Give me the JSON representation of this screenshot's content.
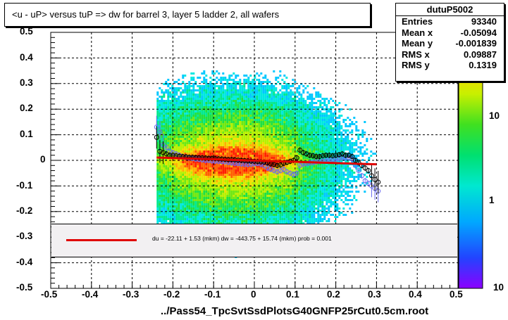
{
  "chart_data": {
    "type": "scatter",
    "title": "<u - uP>       versus  tuP =>  dw for barrel 3, layer 5 ladder 2, all wafers",
    "xlabel": "../Pass54_TpcSvtSsdPlotsG40GNFP25rCut0.5cm.root",
    "ylabel": "",
    "xlim": [
      -0.5,
      0.5
    ],
    "ylim": [
      -0.5,
      0.5
    ],
    "x_ticks": [
      "-0.5",
      "-0.4",
      "-0.3",
      "-0.2",
      "-0.1",
      "0",
      "0.1",
      "0.2",
      "0.3",
      "0.4",
      "0.5"
    ],
    "y_ticks": [
      "0.5",
      "0.4",
      "0.3",
      "0.2",
      "0.1",
      "0",
      "-0.1",
      "-0.2",
      "-0.3",
      "-0.4",
      "-0.5"
    ],
    "z_ticks": [
      "10",
      "1",
      "10"
    ],
    "grid": true,
    "stats": {
      "name": "dutuP5002",
      "rows": [
        {
          "label": "Entries",
          "value": "93340"
        },
        {
          "label": "Mean x",
          "value": "-0.05094"
        },
        {
          "label": "Mean y",
          "value": "-0.001839"
        },
        {
          "label": "RMS x",
          "value": "0.09887"
        },
        {
          "label": "RMS y",
          "value": "0.1319"
        }
      ]
    },
    "fit_text": "du =  -22.11 +   1.53 (mkm) dw = -443.75 +  15.74 (mkm) prob = 0.001",
    "fit_line": {
      "x": [
        -0.24,
        0.3
      ],
      "y": [
        0.011,
        -0.0155
      ],
      "color": "#e00000"
    },
    "profile_black": {
      "x": [
        -0.24,
        -0.232,
        -0.224,
        -0.216,
        -0.208,
        -0.2,
        -0.192,
        -0.184,
        -0.176,
        -0.168,
        -0.16,
        -0.152,
        -0.144,
        -0.136,
        -0.128,
        -0.12,
        -0.112,
        -0.104,
        -0.096,
        -0.088,
        -0.08,
        -0.072,
        -0.064,
        -0.056,
        -0.048,
        -0.04,
        -0.032,
        -0.024,
        -0.016,
        -0.008,
        0.0,
        0.008,
        0.016,
        0.024,
        0.032,
        0.04,
        0.048,
        0.056,
        0.064,
        0.072,
        0.08,
        0.088,
        0.096,
        0.104,
        0.112,
        0.12,
        0.128,
        0.136,
        0.144,
        0.152,
        0.16,
        0.168,
        0.176,
        0.184,
        0.192,
        0.2,
        0.208,
        0.216,
        0.224,
        0.232,
        0.24,
        0.248,
        0.256,
        0.264,
        0.272,
        0.28,
        0.288,
        0.296,
        0.304
      ],
      "y": [
        0.09,
        0.035,
        0.03,
        0.025,
        0.02,
        0.02,
        0.018,
        0.016,
        0.015,
        0.014,
        0.012,
        0.012,
        0.011,
        0.01,
        0.01,
        0.009,
        0.008,
        0.008,
        0.007,
        0.006,
        0.005,
        0.004,
        0.003,
        0.003,
        0.002,
        0.001,
        0.0,
        -0.001,
        -0.002,
        -0.003,
        -0.004,
        -0.005,
        -0.006,
        -0.007,
        -0.01,
        -0.014,
        -0.016,
        -0.02,
        -0.018,
        -0.012,
        -0.008,
        -0.004,
        0.0,
        0.01,
        0.04,
        0.03,
        0.025,
        0.02,
        0.018,
        0.015,
        0.015,
        0.018,
        0.02,
        0.02,
        0.018,
        0.02,
        0.022,
        0.025,
        0.02,
        0.02,
        0.015,
        0.0,
        -0.01,
        -0.02,
        -0.03,
        -0.04,
        -0.06,
        -0.075,
        -0.085
      ]
    },
    "profile_blue": {
      "x": [
        -0.24,
        -0.232,
        -0.224,
        -0.216,
        -0.208,
        -0.2,
        -0.192,
        -0.184,
        -0.176,
        -0.168,
        -0.16,
        -0.152,
        -0.144,
        -0.136,
        -0.128,
        -0.12,
        -0.112,
        -0.104,
        -0.096,
        -0.088,
        -0.08,
        -0.072,
        -0.064,
        -0.056,
        -0.048,
        -0.04,
        -0.032,
        -0.024,
        -0.016,
        -0.008,
        0.0,
        0.008,
        0.016,
        0.024,
        0.032,
        0.04,
        0.048,
        0.056,
        0.064,
        0.072,
        0.08,
        0.088,
        0.096,
        0.104,
        0.112,
        0.12,
        0.128,
        0.136,
        0.144,
        0.152,
        0.16,
        0.168,
        0.176,
        0.184,
        0.192,
        0.2,
        0.208,
        0.216,
        0.224,
        0.232,
        0.24,
        0.248,
        0.256,
        0.264,
        0.272,
        0.28,
        0.288,
        0.296,
        0.304
      ],
      "y": [
        0.13,
        0.11,
        0.06,
        0.05,
        0.035,
        0.03,
        0.025,
        0.02,
        0.015,
        0.012,
        0.01,
        0.008,
        0.005,
        0.004,
        0.002,
        0.0,
        0.0,
        -0.002,
        -0.003,
        -0.004,
        -0.005,
        -0.006,
        -0.008,
        -0.01,
        -0.012,
        -0.012,
        -0.014,
        -0.015,
        -0.016,
        -0.015,
        -0.014,
        -0.012,
        -0.015,
        -0.02,
        -0.03,
        -0.035,
        -0.04,
        -0.045,
        -0.04,
        -0.035,
        -0.045,
        -0.05,
        -0.055,
        -0.05,
        -0.02,
        -0.015,
        -0.012,
        -0.01,
        -0.008,
        -0.006,
        -0.005,
        -0.004,
        -0.002,
        0.0,
        0.002,
        0.005,
        0.008,
        0.01,
        0.012,
        0.01,
        0.005,
        -0.02,
        -0.04,
        -0.06,
        -0.08,
        -0.09,
        -0.1,
        -0.11,
        -0.12
      ]
    },
    "colors": {
      "fit": "#e00000",
      "profile_black": "#000000",
      "profile_blue": "#6a6af0",
      "frame": "#000000"
    }
  }
}
